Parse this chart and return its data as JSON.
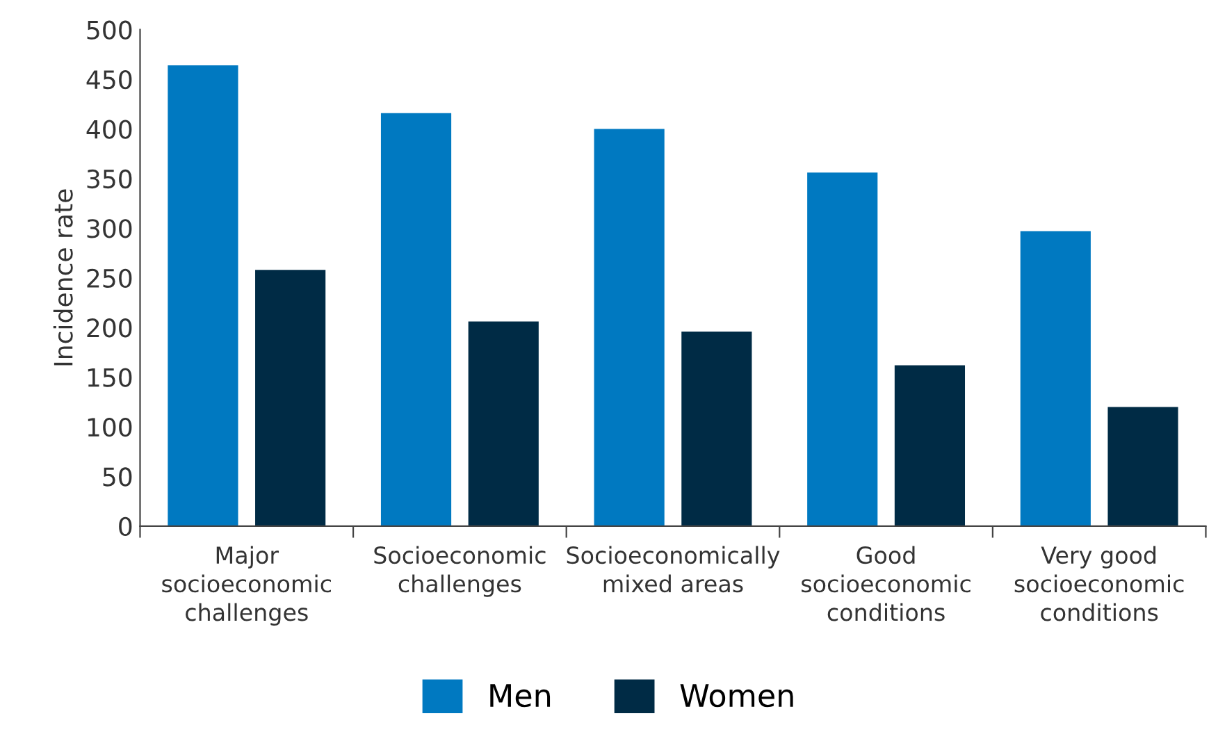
{
  "chart_data": {
    "type": "bar",
    "ylabel": "Incidence rate",
    "categories": [
      "Major\nsocioeconomic\nchallenges",
      "Socioeconomic\nchallenges",
      "Socioeconomically\nmixed areas",
      "Good\nsocioeconomic\nconditions",
      "Very good\nsocioeconomic\nconditions"
    ],
    "series": [
      {
        "name": "Men",
        "color": "#0079c1",
        "values": [
          464,
          416,
          400,
          356,
          297
        ]
      },
      {
        "name": "Women",
        "color": "#002b45",
        "values": [
          258,
          206,
          196,
          162,
          120
        ]
      }
    ],
    "ylim": [
      0,
      500
    ],
    "yticks": [
      0,
      50,
      100,
      150,
      200,
      250,
      300,
      350,
      400,
      450,
      500
    ],
    "grid": false,
    "legend": "bottom"
  }
}
